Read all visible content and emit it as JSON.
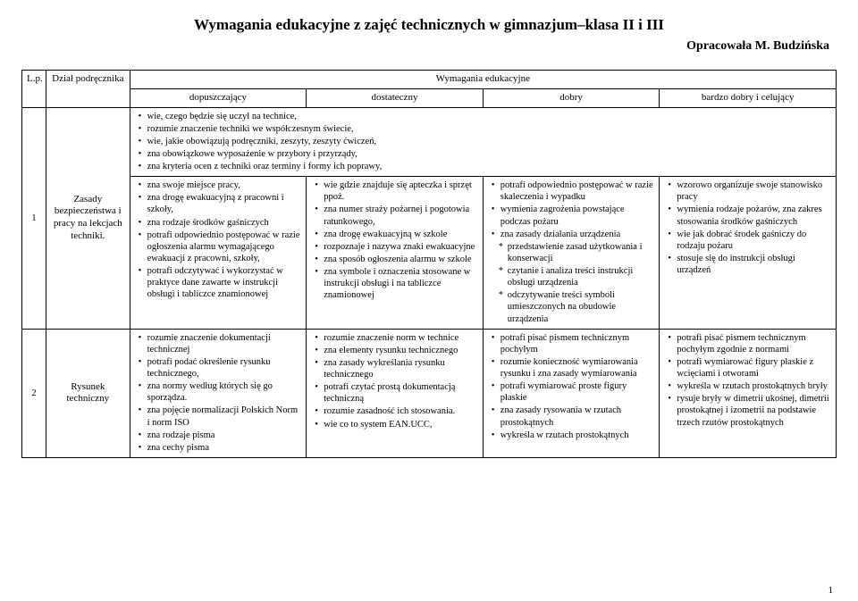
{
  "title": "Wymagania edukacyjne z zajęć technicznych w gimnazjum–klasa II i III",
  "author": "Opracowała M. Budzińska",
  "header": {
    "lp": "L.p.",
    "dzial": "Dział podręcznika",
    "wym": "Wymagania edukacyjne",
    "g1": "dopuszczający",
    "g2": "dostateczny",
    "g3": "dobry",
    "g4": "bardzo dobry i celujący"
  },
  "rows": [
    {
      "lp": "1",
      "dzial": "Zasady bezpieczeństwa i pracy na lekcjach techniki.",
      "intro": [
        "wie, czego będzie się uczył na technice,",
        "rozumie znaczenie techniki we współczesnym świecie,",
        "wie, jakie obowiązują podręczniki, zeszyty, zeszyty ćwiczeń,",
        "zna obowiązkowe wyposażenie w przybory i przyrządy,",
        "zna kryteria ocen z techniki oraz terminy i formy ich poprawy,"
      ],
      "c1": [
        "zna swoje miejsce pracy,",
        "zna drogę ewakuacyjną z pracowni i szkoły,",
        "zna rodzaje środków gaśniczych",
        "potrafi odpowiednio postępować w razie ogłoszenia alarmu wymagającego ewakuacji z pracowni, szkoły,",
        "potrafi odczytywać i wykorzystać w praktyce dane zawarte w instrukcji obsługi i tabliczce znamionowej"
      ],
      "c2": [
        "wie gdzie znajduje się apteczka i sprzęt ppoż.",
        "zna numer straży pożarnej i pogotowia ratunkowego,",
        "zna drogę ewakuacyjną w szkole",
        "rozpoznaje i nazywa znaki ewakuacyjne",
        "zna sposób ogłoszenia alarmu w szkole",
        "zna symbole i oznaczenia stosowane w instrukcji obsługi i na tabliczce znamionowej"
      ],
      "c3": [
        "potrafi odpowiednio postępować w razie skaleczenia i wypadku",
        "wymienia zagrożenia powstające podczas pożaru",
        "zna zasady działania urządzenia"
      ],
      "c3_sub": [
        "przedstawienie zasad użytkowania i konserwacji",
        "czytanie i analiza treści instrukcji obsługi urządzenia",
        "odczytywanie treści symboli umieszczonych na obudowie urządzenia"
      ],
      "c4": [
        "wzorowo organizuje swoje stanowisko pracy",
        "wymienia rodzaje pożarów, zna zakres stosowania środków gaśniczych",
        "wie jak dobrać środek gaśniczy do rodzaju pożaru",
        "stosuje się do instrukcji obsługi urządzeń"
      ]
    },
    {
      "lp": "2",
      "dzial": "Rysunek techniczny",
      "c1": [
        "rozumie znaczenie dokumentacji technicznej",
        "potrafi podać określenie rysunku technicznego,",
        "zna normy według których się go sporządza.",
        "zna pojęcie normalizacji Polskich Norm i norm ISO",
        "zna rodzaje pisma",
        "zna cechy pisma"
      ],
      "c2": [
        "rozumie znaczenie norm w technice",
        "zna elementy rysunku technicznego",
        "zna zasady wykreślania rysunku technicznego",
        "potrafi czytać prostą dokumentacją techniczną",
        "rozumie zasadność ich stosowania.",
        "wie co to system EAN.UCC,"
      ],
      "c3": [
        "potrafi pisać pismem technicznym pochyłym",
        "rozumie konieczność wymiarowania rysunku i zna zasady wymiarowania",
        "potrafi wymiarować proste figury płaskie",
        "zna zasady rysowania w rzutach prostokątnych",
        "wykreśla w rzutach prostokątnych"
      ],
      "c4": [
        "potrafi pisać pismem technicznym pochyłym zgodnie z normami",
        "potrafi wymiarować figury płaskie z wcięciami i otworami",
        "wykreśla w rzutach prostokątnych bryły",
        "rysuje bryły w dimetrii ukośnej, dimetrii prostokątnej i izometrii na podstawie trzech rzutów prostokątnych"
      ]
    }
  ],
  "page_num": "1"
}
